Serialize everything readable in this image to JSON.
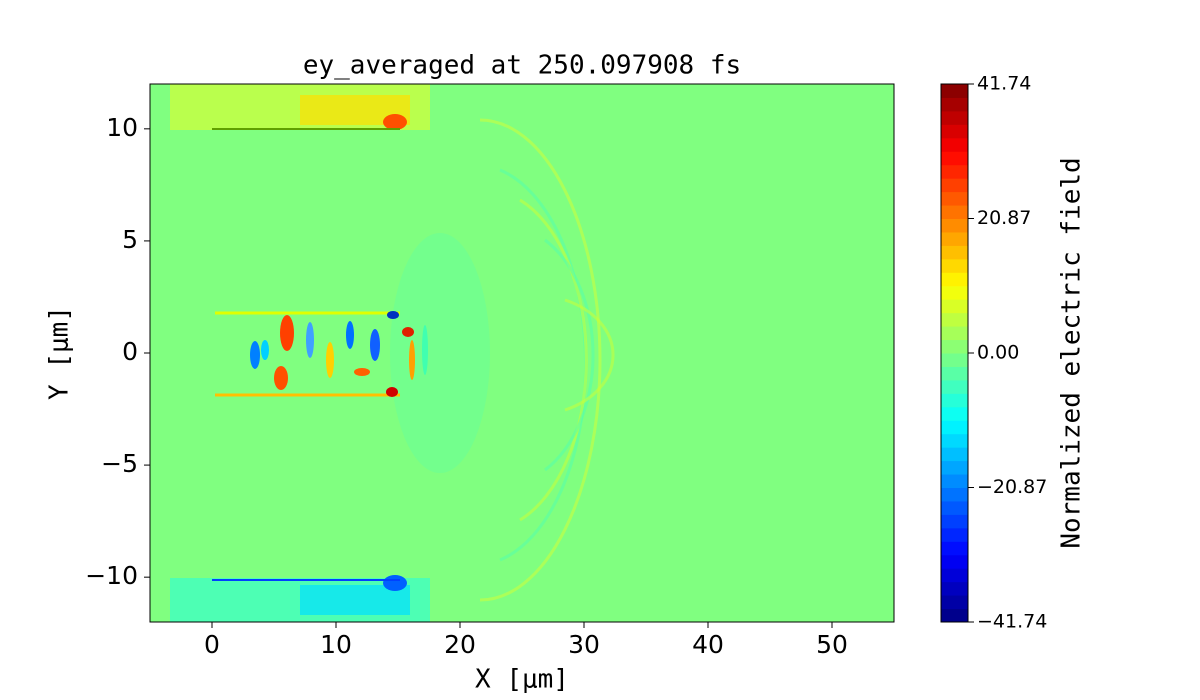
{
  "chart_data": {
    "type": "heatmap",
    "title": "ey_averaged at 250.097908 fs",
    "x_label": "X [μm]",
    "y_label": "Y [μm]",
    "xlim": [
      -5,
      55
    ],
    "xticks": [
      0,
      10,
      20,
      30,
      40,
      50
    ],
    "ylim": [
      -12,
      12
    ],
    "yticks": [
      {
        "value": -10,
        "label": "−10"
      },
      {
        "value": -5,
        "label": "−5"
      },
      0,
      5,
      10
    ],
    "colorbar_label": "Normalized electric field",
    "clim": [
      -41.74,
      41.74
    ],
    "colorbar_ticks": [
      {
        "value": -41.74,
        "label": "−41.74"
      },
      {
        "value": -20.87,
        "label": "−20.87"
      },
      {
        "value": 0,
        "label": "0.00"
      },
      20.87,
      41.74
    ],
    "colormap": "jet"
  }
}
